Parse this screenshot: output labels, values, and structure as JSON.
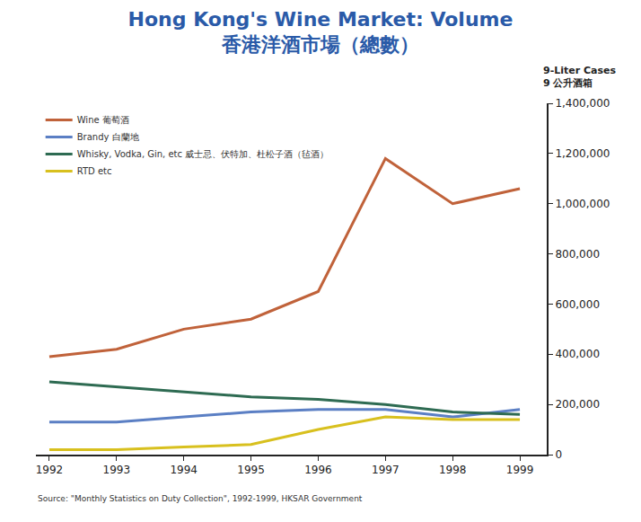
{
  "chart_data": {
    "type": "line",
    "title": "Hong Kong's Wine Market: Volume",
    "subtitle": "香港洋酒市場（總數）",
    "ylabel": "9-Liter Cases",
    "ylabel_zh": "9 公升酒箱",
    "source": "Source: \"Monthly Statistics on Duty Collection\", 1992-1999, HKSAR Government",
    "x": [
      1992,
      1993,
      1994,
      1995,
      1996,
      1997,
      1998,
      1999
    ],
    "xlim": [
      1991.8,
      1999.4
    ],
    "xticks": [
      1992,
      1993,
      1994,
      1995,
      1996,
      1997,
      1998,
      1999
    ],
    "ylim": [
      0,
      1400000
    ],
    "yticks": [
      0,
      {
        "value": 200000,
        "label": "200,000"
      },
      {
        "value": 400000,
        "label": "400,000"
      },
      {
        "value": 600000,
        "label": "600,000"
      },
      {
        "value": 800000,
        "label": "800,000"
      },
      {
        "value": 1000000,
        "label": "1,000,000"
      },
      {
        "value": 1200000,
        "label": "1,200,000"
      },
      {
        "value": 1400000,
        "label": "1,400,000"
      }
    ],
    "grid": false,
    "legend": "top left",
    "series": [
      {
        "name": "Wine 葡萄酒",
        "color": "#c0623a",
        "values": [
          390000,
          420000,
          500000,
          540000,
          650000,
          1180000,
          1000000,
          1060000
        ]
      },
      {
        "name": "Brandy 白蘭地",
        "color": "#5b7fc4",
        "values": [
          130000,
          130000,
          150000,
          170000,
          180000,
          180000,
          150000,
          180000
        ]
      },
      {
        "name": "Whisky, Vodka, Gin, etc 威士忌、伏特加、杜松子酒（毡酒）",
        "color": "#2e6b52",
        "values": [
          290000,
          270000,
          250000,
          230000,
          220000,
          200000,
          170000,
          160000
        ]
      },
      {
        "name": "RTD etc",
        "color": "#d8c01e",
        "values": [
          20000,
          20000,
          30000,
          40000,
          100000,
          150000,
          140000,
          140000
        ]
      }
    ]
  }
}
